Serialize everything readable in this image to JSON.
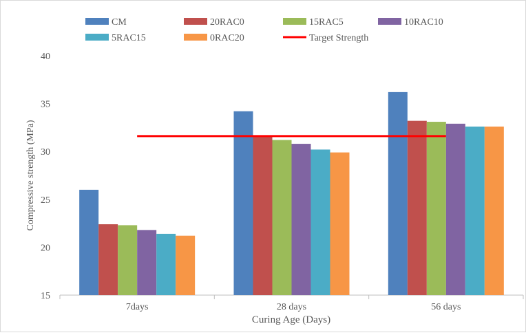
{
  "chart_data": {
    "type": "bar",
    "title": "",
    "xlabel": "Curing Age (Days)",
    "ylabel": "Compressive strength (MPa)",
    "ylim": [
      15,
      40
    ],
    "yticks": [
      15,
      20,
      25,
      30,
      35,
      40
    ],
    "categories": [
      "7days",
      "28 days",
      "56 days"
    ],
    "series": [
      {
        "name": "CM",
        "color": "#4f81bd",
        "values": [
          26.0,
          34.2,
          36.2
        ]
      },
      {
        "name": "20RAC0",
        "color": "#c0504d",
        "values": [
          22.4,
          31.6,
          33.2
        ]
      },
      {
        "name": "15RAC5",
        "color": "#9bbb59",
        "values": [
          22.3,
          31.2,
          33.1
        ]
      },
      {
        "name": "10RAC10",
        "color": "#8064a2",
        "values": [
          21.8,
          30.8,
          32.9
        ]
      },
      {
        "name": "5RAC15",
        "color": "#4bacc6",
        "values": [
          21.4,
          30.2,
          32.6
        ]
      },
      {
        "name": "0RAC20",
        "color": "#f79646",
        "values": [
          21.2,
          29.9,
          32.6
        ]
      }
    ],
    "reference_line": {
      "name": "Target Strength",
      "color": "#ff0000",
      "value": 31.6
    },
    "legend": {
      "position": "top"
    },
    "grid": false
  }
}
